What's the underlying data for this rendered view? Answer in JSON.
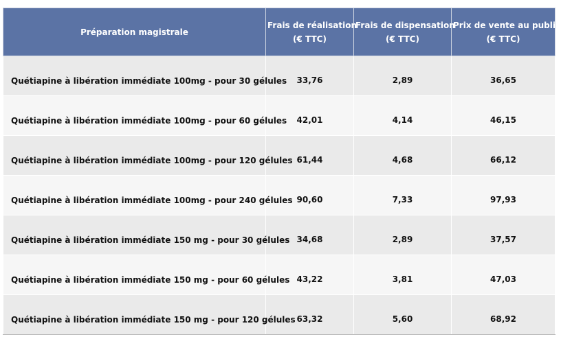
{
  "table": {
    "headers": [
      {
        "line1": "Préparation magistrale",
        "line2": ""
      },
      {
        "line1": "Frais de réalisation",
        "line2": "(€ TTC)"
      },
      {
        "line1": "Frais de dispensation",
        "line2": "(€ TTC)"
      },
      {
        "line1": "Prix de vente au public",
        "line2": "(€ TTC)"
      }
    ],
    "rows": [
      {
        "name": "Quétiapine à libération immédiate 100mg - pour 30 gélules",
        "realisation": "33,76",
        "dispensation": "2,89",
        "prix": "36,65"
      },
      {
        "name": "Quétiapine à libération immédiate 100mg - pour 60 gélules",
        "realisation": "42,01",
        "dispensation": "4,14",
        "prix": "46,15"
      },
      {
        "name": "Quétiapine à libération immédiate 100mg - pour 120 gélules",
        "realisation": "61,44",
        "dispensation": "4,68",
        "prix": "66,12"
      },
      {
        "name": "Quétiapine à libération immédiate 100mg - pour 240 gélules",
        "realisation": "90,60",
        "dispensation": "7,33",
        "prix": "97,93"
      },
      {
        "name": "Quétiapine à libération immédiate 150 mg - pour 30 gélules",
        "realisation": "34,68",
        "dispensation": "2,89",
        "prix": "37,57"
      },
      {
        "name": "Quétiapine à libération immédiate 150 mg - pour 60 gélules",
        "realisation": "43,22",
        "dispensation": "3,81",
        "prix": "47,03"
      },
      {
        "name": "Quétiapine à libération immédiate 150 mg - pour 120 gélules",
        "realisation": "63,32",
        "dispensation": "5,60",
        "prix": "68,92"
      }
    ]
  },
  "colors": {
    "header_bg": "#5b73a5",
    "header_text": "#ffffff",
    "row_odd_bg": "#eaeaea",
    "row_even_bg": "#f6f6f6"
  }
}
